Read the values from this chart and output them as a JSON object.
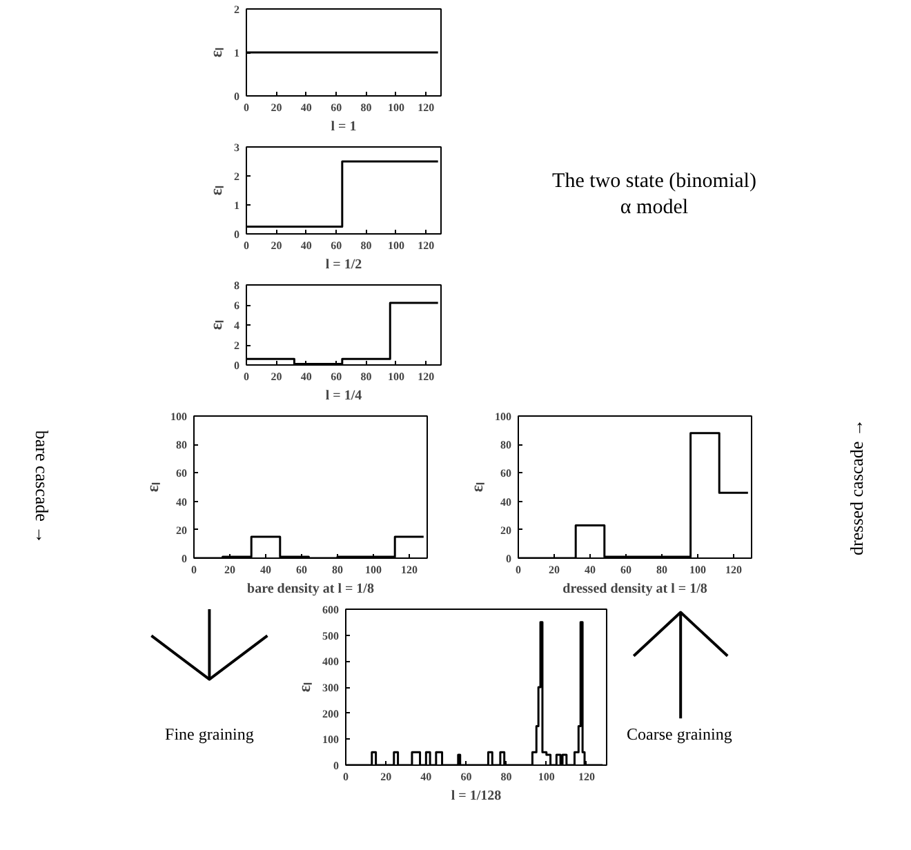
{
  "chart_data": [
    {
      "type": "step",
      "xlabel": "l = 1",
      "ylabel": "εₗ",
      "x": [
        0,
        128
      ],
      "values": [
        1,
        1
      ],
      "color": "#000000",
      "xlim": [
        0,
        130
      ],
      "xticks": [
        0,
        20,
        40,
        60,
        80,
        100,
        120
      ],
      "ylim": [
        0,
        2
      ],
      "yticks": [
        0,
        1,
        2
      ]
    },
    {
      "type": "step",
      "xlabel": "l = 1/2",
      "ylabel": "εₗ",
      "x": [
        0,
        64,
        128
      ],
      "values": [
        0.25,
        2.5,
        2.5
      ],
      "color": "#000000",
      "xlim": [
        0,
        130
      ],
      "xticks": [
        0,
        20,
        40,
        60,
        80,
        100,
        120
      ],
      "ylim": [
        0,
        3
      ],
      "yticks": [
        0,
        1,
        2,
        3
      ],
      "annotations": [
        "The two state (binomial)\nα model"
      ]
    },
    {
      "type": "step",
      "xlabel": "l = 1/4",
      "ylabel": "εₗ",
      "x": [
        0,
        32,
        64,
        96,
        128
      ],
      "values": [
        0.6,
        0.1,
        0.6,
        6.2,
        6.2
      ],
      "color": "#000000",
      "xlim": [
        0,
        130
      ],
      "xticks": [
        0,
        20,
        40,
        60,
        80,
        100,
        120
      ],
      "ylim": [
        0,
        8
      ],
      "yticks": [
        0,
        2,
        4,
        6,
        8
      ]
    },
    {
      "type": "step",
      "xlabel": "bare density at l = 1/8",
      "ylabel": "εₗ",
      "x": [
        0,
        16,
        32,
        48,
        64,
        80,
        96,
        112,
        128
      ],
      "values": [
        0,
        1,
        15,
        1,
        0,
        1,
        1,
        15,
        15
      ],
      "color": "#000000",
      "xlim": [
        0,
        130
      ],
      "xticks": [
        0,
        20,
        40,
        60,
        80,
        100,
        120
      ],
      "ylim": [
        0,
        100
      ],
      "yticks": [
        0,
        20,
        40,
        60,
        80,
        100
      ],
      "annotations": [
        "bare cascade →"
      ]
    },
    {
      "type": "step",
      "xlabel": "dressed density at l = 1/8",
      "ylabel": "εₗ",
      "x": [
        0,
        32,
        48,
        96,
        112,
        128
      ],
      "values": [
        0,
        23,
        1,
        88,
        46,
        46
      ],
      "color": "#000000",
      "xlim": [
        0,
        130
      ],
      "xticks": [
        0,
        20,
        40,
        60,
        80,
        100,
        120
      ],
      "ylim": [
        0,
        100
      ],
      "yticks": [
        0,
        20,
        40,
        60,
        80,
        100
      ],
      "annotations": [
        "dressed cascade →"
      ]
    },
    {
      "type": "step",
      "xlabel": "l = 1/128",
      "ylabel": "εₗ",
      "x": [
        0,
        13,
        15,
        24,
        26,
        33,
        37,
        40,
        42,
        45,
        48,
        56,
        57,
        71,
        73,
        77,
        79,
        93,
        95,
        96,
        97,
        98,
        100,
        102,
        105,
        107,
        108,
        110,
        114,
        116,
        117,
        118,
        119,
        128
      ],
      "values": [
        0,
        50,
        0,
        50,
        0,
        50,
        0,
        50,
        0,
        50,
        0,
        40,
        0,
        50,
        0,
        50,
        0,
        50,
        150,
        300,
        550,
        50,
        40,
        0,
        40,
        0,
        40,
        0,
        50,
        150,
        550,
        50,
        0,
        0
      ],
      "color": "#000000",
      "xlim": [
        0,
        130
      ],
      "xticks": [
        0,
        20,
        40,
        60,
        80,
        100,
        120
      ],
      "ylim": [
        0,
        600
      ],
      "yticks": [
        0,
        100,
        200,
        300,
        400,
        500,
        600
      ],
      "annotations": [
        "Fine graining",
        "Coarse graining"
      ]
    }
  ]
}
